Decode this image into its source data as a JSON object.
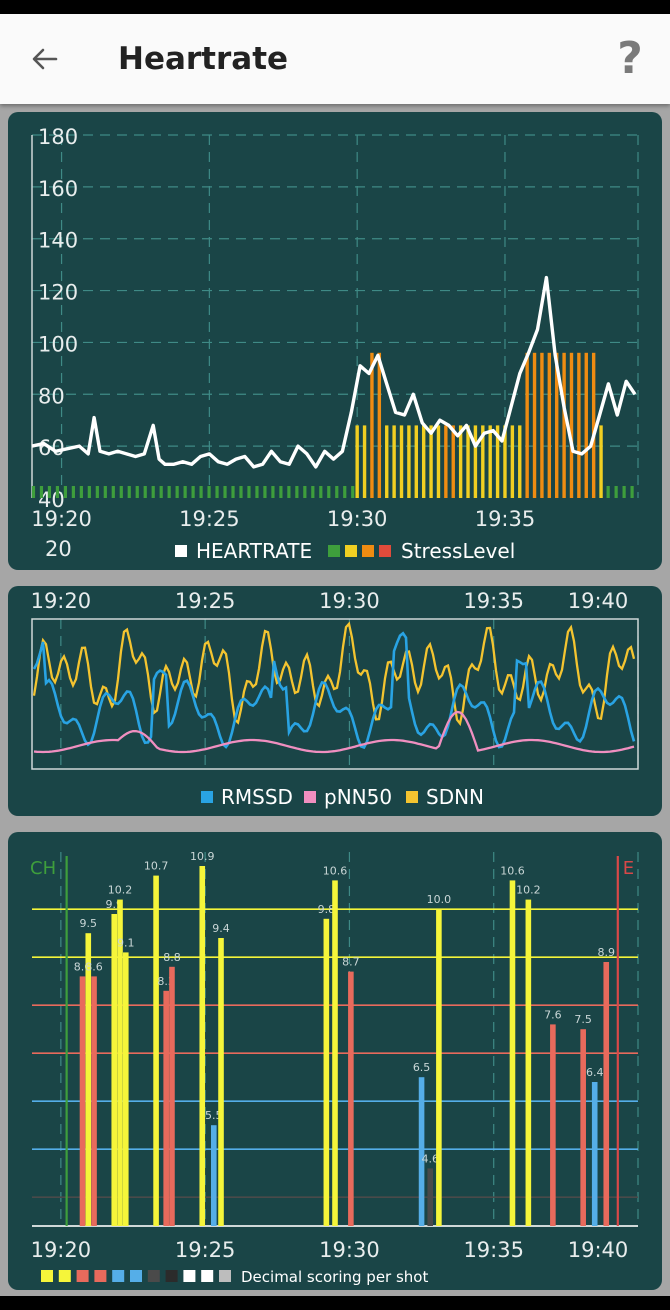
{
  "app": {
    "title": "Heartrate",
    "help_label": "?"
  },
  "colors": {
    "card_bg": "#1a4547",
    "heartrate": "#ffffff",
    "stress_green": "#3e9e3c",
    "stress_yellow": "#f1cf22",
    "stress_orange": "#ef8c12",
    "stress_red": "#e04b3b",
    "rmssd": "#29a3e3",
    "pnn50": "#f08fc0",
    "sdnn": "#f4c430",
    "score_yellow": "#f5f53a",
    "score_red": "#e86a5c",
    "score_blue": "#55aee8",
    "score_gray": "#4a4a4a",
    "start_line": "#3e9e3c",
    "end_line": "#d84848"
  },
  "chart_data": [
    {
      "type": "line",
      "series": [
        {
          "name": "HEARTRATE",
          "x": [
            19.0,
            19.4,
            19.8,
            20.2,
            20.6,
            20.9,
            21.1,
            21.3,
            21.6,
            21.9,
            22.2,
            22.5,
            22.8,
            23.1,
            23.3,
            23.5,
            23.8,
            24.1,
            24.4,
            24.7,
            25.0,
            25.3,
            25.6,
            25.9,
            26.2,
            26.5,
            26.8,
            27.1,
            27.4,
            27.7,
            28.0,
            28.3,
            28.6,
            28.9,
            29.2,
            29.5,
            29.8,
            30.1,
            30.4,
            30.7,
            31.0,
            31.3,
            31.6,
            31.9,
            32.2,
            32.5,
            32.8,
            33.1,
            33.4,
            33.7,
            34.0,
            34.3,
            34.6,
            34.9,
            35.2,
            35.5,
            35.8,
            36.1,
            36.4,
            36.7,
            37.0,
            37.3,
            37.6,
            37.9,
            38.2,
            38.5,
            38.8,
            39.1,
            39.4
          ],
          "y": [
            60,
            61,
            58,
            59,
            60,
            57,
            71,
            58,
            57,
            58,
            57,
            56,
            57,
            68,
            55,
            53,
            53,
            54,
            53,
            56,
            57,
            54,
            53,
            55,
            56,
            52,
            53,
            58,
            54,
            53,
            60,
            57,
            52,
            58,
            55,
            58,
            73,
            91,
            88,
            95,
            84,
            73,
            72,
            80,
            69,
            65,
            70,
            68,
            64,
            68,
            60,
            65,
            66,
            62,
            75,
            88,
            96,
            105,
            125,
            95,
            75,
            58,
            57,
            60,
            72,
            84,
            72,
            85,
            80
          ]
        },
        {
          "name": "StressLevel",
          "levels": [
            "green",
            "green",
            "green",
            "green",
            "green",
            "green",
            "green",
            "green",
            "green",
            "green",
            "green",
            "green",
            "green",
            "green",
            "green",
            "green",
            "green",
            "green",
            "green",
            "green",
            "green",
            "green",
            "green",
            "green",
            "green",
            "green",
            "green",
            "green",
            "green",
            "green",
            "green",
            "green",
            "green",
            "green",
            "green",
            "green",
            "green",
            "green",
            "green",
            "green",
            "green",
            "green",
            "green",
            "green",
            "green",
            "green",
            "green",
            "green",
            "green",
            "green",
            "green",
            "green",
            "green",
            "green",
            "green",
            "green",
            "green",
            "green",
            "green",
            "green",
            "green",
            "green",
            "green",
            "green",
            "green",
            "green",
            "green",
            "green",
            "green",
            "green",
            "green",
            "green",
            "green",
            "green",
            "green",
            "green",
            "green",
            "green",
            "green",
            "green",
            "green",
            "green",
            "green",
            "green",
            "green",
            "green",
            "green",
            "green",
            "green",
            "green",
            "green",
            "green",
            "green",
            "green",
            "green",
            "green",
            "green",
            "green",
            "green",
            "green",
            "green",
            "green",
            "green",
            "green",
            "green",
            "green",
            "green",
            "green",
            "green",
            "green",
            "green",
            "green",
            "green",
            "green",
            "green",
            "green",
            "green",
            "green",
            "green",
            "green",
            "green",
            "green",
            "green",
            "green",
            "green",
            "green",
            "green",
            "green",
            "green",
            "green",
            "green",
            "green",
            "green",
            "green",
            "green",
            "green",
            "green",
            "green",
            "green",
            "green",
            "green",
            "green",
            "green",
            "green",
            "green",
            "green",
            "green",
            "green",
            "green",
            "green",
            "green",
            "green",
            "green",
            "green",
            "green",
            "green",
            "green",
            "green",
            "green",
            "green",
            "green",
            "green"
          ]
        }
      ],
      "stress_bars": [
        {
          "x": 30.0,
          "y": 68,
          "level": "yellow"
        },
        {
          "x": 30.25,
          "y": 68,
          "level": "yellow"
        },
        {
          "x": 30.5,
          "y": 96,
          "level": "orange"
        },
        {
          "x": 30.75,
          "y": 96,
          "level": "orange"
        },
        {
          "x": 31.0,
          "y": 68,
          "level": "yellow"
        },
        {
          "x": 31.25,
          "y": 68,
          "level": "yellow"
        },
        {
          "x": 31.5,
          "y": 68,
          "level": "yellow"
        },
        {
          "x": 31.75,
          "y": 68,
          "level": "yellow"
        },
        {
          "x": 32.0,
          "y": 68,
          "level": "yellow"
        },
        {
          "x": 32.25,
          "y": 68,
          "level": "yellow"
        },
        {
          "x": 32.5,
          "y": 68,
          "level": "yellow"
        },
        {
          "x": 32.75,
          "y": 68,
          "level": "yellow"
        },
        {
          "x": 33.0,
          "y": 68,
          "level": "orange"
        },
        {
          "x": 33.25,
          "y": 68,
          "level": "orange"
        },
        {
          "x": 33.5,
          "y": 68,
          "level": "yellow"
        },
        {
          "x": 33.75,
          "y": 68,
          "level": "yellow"
        },
        {
          "x": 34.0,
          "y": 68,
          "level": "yellow"
        },
        {
          "x": 34.25,
          "y": 68,
          "level": "yellow"
        },
        {
          "x": 34.5,
          "y": 68,
          "level": "yellow"
        },
        {
          "x": 34.75,
          "y": 68,
          "level": "yellow"
        },
        {
          "x": 35.0,
          "y": 68,
          "level": "yellow"
        },
        {
          "x": 35.25,
          "y": 68,
          "level": "yellow"
        },
        {
          "x": 35.5,
          "y": 68,
          "level": "yellow"
        },
        {
          "x": 35.75,
          "y": 96,
          "level": "orange"
        },
        {
          "x": 36.0,
          "y": 96,
          "level": "orange"
        },
        {
          "x": 36.25,
          "y": 96,
          "level": "orange"
        },
        {
          "x": 36.5,
          "y": 96,
          "level": "orange"
        },
        {
          "x": 36.75,
          "y": 96,
          "level": "orange"
        },
        {
          "x": 37.0,
          "y": 96,
          "level": "orange"
        },
        {
          "x": 37.25,
          "y": 96,
          "level": "orange"
        },
        {
          "x": 37.5,
          "y": 96,
          "level": "orange"
        },
        {
          "x": 37.75,
          "y": 96,
          "level": "orange"
        },
        {
          "x": 38.0,
          "y": 96,
          "level": "orange"
        },
        {
          "x": 38.25,
          "y": 68,
          "level": "yellow"
        }
      ],
      "y_ticks": [
        "180",
        "160",
        "140",
        "120",
        "100",
        "80",
        "60",
        "40",
        "20"
      ],
      "x_ticks": [
        "19:20",
        "19:25",
        "19:30",
        "19:35"
      ],
      "x_tick_values": [
        20,
        25,
        30,
        35
      ],
      "xlim": [
        19.0,
        39.5
      ],
      "ylim": [
        40,
        180
      ],
      "legend": [
        {
          "label": "HEARTRATE",
          "swatches": [
            "#ffffff"
          ]
        },
        {
          "label": "StressLevel",
          "swatches": [
            "#3e9e3c",
            "#f1cf22",
            "#ef8c12",
            "#e04b3b"
          ]
        }
      ],
      "grid": true,
      "legend_position": "bottom"
    },
    {
      "type": "line",
      "series": [
        {
          "name": "RMSSD"
        },
        {
          "name": "pNN50"
        },
        {
          "name": "SDNN"
        }
      ],
      "x_ticks": [
        "19:20",
        "19:25",
        "19:30",
        "19:35",
        "19:40"
      ],
      "x_tick_values": [
        20,
        25,
        30,
        35,
        40
      ],
      "xlim": [
        19.0,
        40.0
      ],
      "legend": [
        {
          "label": "RMSSD",
          "swatches": [
            "#29a3e3"
          ]
        },
        {
          "label": "pNN50",
          "swatches": [
            "#f08fc0"
          ]
        },
        {
          "label": "SDNN",
          "swatches": [
            "#f4c430"
          ]
        }
      ],
      "grid": true,
      "legend_position": "bottom"
    },
    {
      "type": "bar",
      "bars": [
        {
          "x": 20.75,
          "value": 8.6,
          "color": "red",
          "label": "8.6"
        },
        {
          "x": 20.95,
          "value": 9.5,
          "color": "yellow",
          "label": "9.5"
        },
        {
          "x": 21.15,
          "value": 8.6,
          "color": "red",
          "label": "8.6"
        },
        {
          "x": 21.85,
          "value": 9.9,
          "color": "yellow",
          "label": "9.9"
        },
        {
          "x": 22.05,
          "value": 10.2,
          "color": "yellow",
          "label": "10.2"
        },
        {
          "x": 22.25,
          "value": 9.1,
          "color": "yellow",
          "label": "9.1"
        },
        {
          "x": 23.3,
          "value": 10.7,
          "color": "yellow",
          "label": "10.7"
        },
        {
          "x": 23.65,
          "value": 8.3,
          "color": "red",
          "label": "8.3"
        },
        {
          "x": 23.85,
          "value": 8.8,
          "color": "red",
          "label": "8.8"
        },
        {
          "x": 24.9,
          "value": 10.9,
          "color": "yellow",
          "label": "10.9"
        },
        {
          "x": 25.3,
          "value": 5.5,
          "color": "blue",
          "label": "5.5"
        },
        {
          "x": 25.55,
          "value": 9.4,
          "color": "yellow",
          "label": "9.4"
        },
        {
          "x": 29.2,
          "value": 9.8,
          "color": "yellow",
          "label": "9.8"
        },
        {
          "x": 29.5,
          "value": 10.6,
          "color": "yellow",
          "label": "10.6"
        },
        {
          "x": 30.05,
          "value": 8.7,
          "color": "red",
          "label": "8.7"
        },
        {
          "x": 32.5,
          "value": 6.5,
          "color": "blue",
          "label": "6.5"
        },
        {
          "x": 32.8,
          "value": 4.6,
          "color": "gray",
          "label": "4.6"
        },
        {
          "x": 33.1,
          "value": 10.0,
          "color": "yellow",
          "label": "10.0"
        },
        {
          "x": 35.65,
          "value": 10.6,
          "color": "yellow",
          "label": "10.6"
        },
        {
          "x": 36.2,
          "value": 10.2,
          "color": "yellow",
          "label": "10.2"
        },
        {
          "x": 37.05,
          "value": 7.6,
          "color": "red",
          "label": "7.6"
        },
        {
          "x": 38.1,
          "value": 7.5,
          "color": "red",
          "label": "7.5"
        },
        {
          "x": 38.5,
          "value": 6.4,
          "color": "blue",
          "label": "6.4"
        },
        {
          "x": 38.9,
          "value": 8.9,
          "color": "red",
          "label": "8.9"
        }
      ],
      "markers": [
        {
          "label": "CH",
          "x": 20.2,
          "color": "#3e9e3c"
        },
        {
          "label": "E",
          "x": 39.3,
          "color": "#d84848"
        }
      ],
      "h_lines": [
        {
          "value": 10,
          "color": "#f5f53a"
        },
        {
          "value": 9,
          "color": "#f5f53a"
        },
        {
          "value": 8,
          "color": "#e86a5c"
        },
        {
          "value": 7,
          "color": "#e86a5c"
        },
        {
          "value": 6,
          "color": "#55aee8"
        },
        {
          "value": 5,
          "color": "#55aee8"
        },
        {
          "value": 4,
          "color": "#4a4a4a"
        }
      ],
      "x_ticks": [
        "19:20",
        "19:25",
        "19:30",
        "19:35",
        "19:40"
      ],
      "x_tick_values": [
        20,
        25,
        30,
        35,
        40
      ],
      "xlim": [
        19.0,
        40.0
      ],
      "ylim": [
        3.4,
        11.4
      ],
      "legend": [
        {
          "label": "Decimal scoring per shot",
          "swatches": [
            "#f5f53a",
            "#f5f53a",
            "#e86a5c",
            "#e86a5c",
            "#55aee8",
            "#55aee8",
            "#4a4a4a",
            "#2b2b2b",
            "#ffffff",
            "#ffffff",
            "#bdbdbd"
          ]
        }
      ],
      "legend_position": "bottom"
    }
  ]
}
